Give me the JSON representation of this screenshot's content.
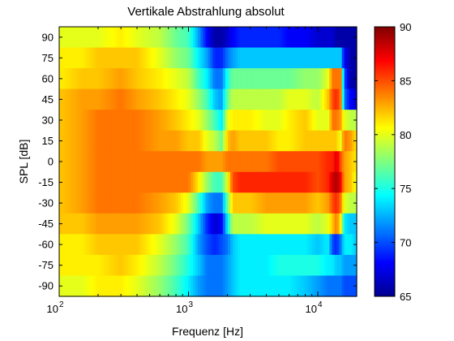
{
  "chart_data": {
    "type": "heatmap",
    "title": "Vertikale Abstrahlung absolut",
    "xlabel": "Frequenz [Hz]",
    "ylabel": "SPL [dB]",
    "x_scale": "log",
    "x_range_hz": [
      100,
      20000
    ],
    "x_ticks": [
      {
        "base": "10",
        "exp": "2"
      },
      {
        "base": "10",
        "exp": "3"
      },
      {
        "base": "10",
        "exp": "4"
      }
    ],
    "y_tick_labels": [
      "90",
      "75",
      "60",
      "45",
      "30",
      "15",
      "0",
      "-15",
      "-30",
      "-45",
      "-60",
      "-75",
      "-90"
    ],
    "colorbar": {
      "range": [
        65,
        90
      ],
      "tick_labels": [
        "90",
        "85",
        "80",
        "75",
        "70",
        "65"
      ],
      "colormap": "jet"
    },
    "grid": false,
    "freq_nodes_hz": [
      100,
      150,
      200,
      300,
      400,
      600,
      800,
      1000,
      1200,
      1400,
      1600,
      1800,
      2000,
      2200,
      2500,
      3000,
      4000,
      5000,
      6000,
      8000,
      10000,
      12000,
      13000,
      14000,
      15000,
      16000,
      18000,
      20000
    ],
    "levels_db": [
      [
        80,
        80,
        80,
        81,
        80,
        79,
        77,
        76,
        72,
        68,
        66,
        66,
        67,
        68,
        69,
        69,
        69,
        69,
        68,
        68,
        67,
        67,
        67,
        66,
        66,
        66,
        66,
        66
      ],
      [
        81,
        81,
        82,
        82,
        82,
        80,
        78,
        77,
        74,
        72,
        69,
        69,
        71,
        72,
        73,
        73,
        73,
        73,
        73,
        73,
        73,
        73,
        73,
        73,
        73,
        68,
        66,
        66
      ],
      [
        81,
        82,
        82,
        83,
        82,
        81,
        80,
        79,
        76,
        74,
        71,
        71,
        75,
        77,
        77,
        77,
        77,
        77,
        77,
        78,
        78,
        80,
        84,
        84,
        84,
        70,
        66,
        66
      ],
      [
        82,
        83,
        83,
        84,
        83,
        82,
        81,
        80,
        78,
        76,
        73,
        72,
        77,
        79,
        79,
        79,
        79,
        79,
        80,
        80,
        79,
        82,
        85,
        86,
        84,
        71,
        68,
        67
      ],
      [
        82,
        83,
        84,
        84,
        84,
        83,
        82,
        81,
        80,
        78,
        76,
        74,
        80,
        81,
        81,
        81,
        80,
        80,
        81,
        82,
        80,
        80,
        84,
        84,
        83,
        80,
        79,
        79
      ],
      [
        82,
        83,
        84,
        84,
        84,
        83,
        83,
        82,
        82,
        80,
        79,
        77,
        82,
        83,
        82,
        82,
        82,
        81,
        81,
        82,
        82,
        82,
        82,
        82,
        80,
        84,
        83,
        81
      ],
      [
        82,
        83,
        84,
        84,
        84,
        84,
        84,
        84,
        84,
        83,
        83,
        83,
        84,
        84,
        84,
        84,
        84,
        85,
        85,
        85,
        85,
        86,
        86,
        88,
        85,
        83,
        82,
        81
      ],
      [
        82,
        83,
        84,
        84,
        84,
        84,
        84,
        84,
        81,
        78,
        76,
        76,
        80,
        85,
        86,
        86,
        86,
        86,
        86,
        86,
        85,
        86,
        88,
        89,
        87,
        83,
        82,
        80
      ],
      [
        82,
        83,
        84,
        84,
        84,
        83,
        82,
        80,
        76,
        72,
        71,
        71,
        77,
        82,
        82,
        82,
        83,
        83,
        83,
        83,
        82,
        83,
        85,
        86,
        84,
        80,
        79,
        79
      ],
      [
        82,
        82,
        83,
        83,
        83,
        82,
        80,
        77,
        73,
        69,
        67,
        68,
        74,
        79,
        79,
        79,
        80,
        80,
        80,
        80,
        79,
        80,
        82,
        84,
        81,
        74,
        73,
        73
      ],
      [
        81,
        81,
        82,
        82,
        82,
        80,
        78,
        76,
        72,
        70,
        69,
        70,
        71,
        73,
        74,
        74,
        74,
        74,
        74,
        74,
        73,
        74,
        70,
        69,
        71,
        74,
        74,
        73
      ],
      [
        81,
        81,
        81,
        82,
        81,
        79,
        77,
        75,
        73,
        71,
        71,
        71,
        72,
        73,
        74,
        74,
        74,
        75,
        75,
        75,
        75,
        74,
        74,
        73,
        73,
        72,
        72,
        72
      ],
      [
        80,
        80,
        81,
        81,
        80,
        78,
        76,
        74,
        72,
        71,
        71,
        71,
        72,
        73,
        74,
        74,
        74,
        74,
        74,
        73,
        72,
        71,
        71,
        71,
        71,
        70,
        70,
        70
      ]
    ]
  }
}
